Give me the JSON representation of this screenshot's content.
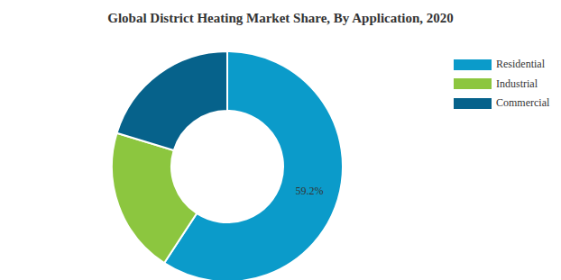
{
  "chart_data": {
    "type": "pie",
    "title": "Global District Heating Market Share, By Application, 2020",
    "categories": [
      "Residential",
      "Industrial",
      "Commercial"
    ],
    "values": [
      59.2,
      20.5,
      20.3
    ],
    "value_labels": [
      "59.2%",
      null,
      null
    ],
    "colors": [
      "#0b9bca",
      "#8cc63f",
      "#06628b"
    ],
    "data_labels": true,
    "legend": "top-right"
  }
}
